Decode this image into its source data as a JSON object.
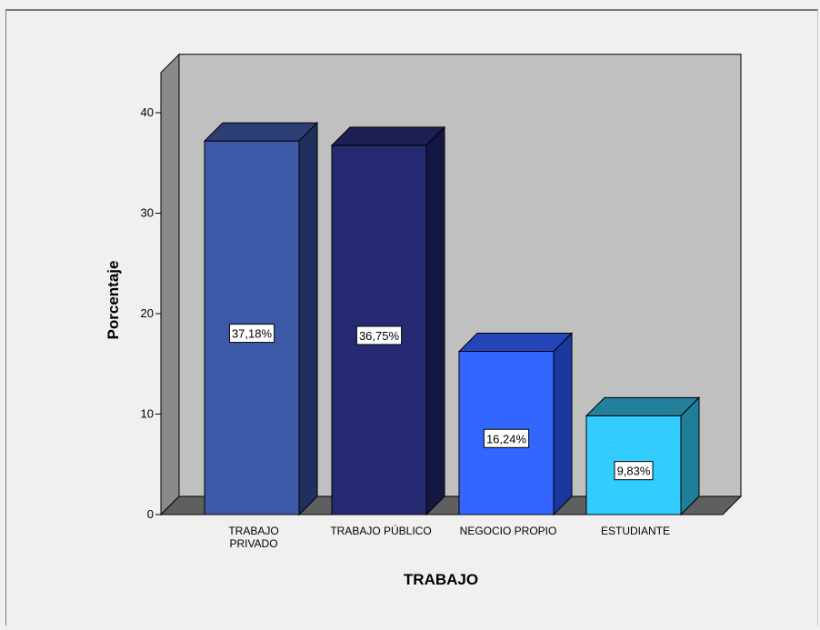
{
  "chart_data": {
    "type": "bar",
    "style": "3d",
    "xlabel": "TRABAJO",
    "ylabel": "Porcentaje",
    "ylim": [
      0,
      40
    ],
    "yticks": [
      "0",
      "10",
      "20",
      "30",
      "40"
    ],
    "grid": false,
    "legend": "none",
    "categories": [
      [
        "TRABAJO",
        "PRIVADO"
      ],
      [
        "TRABAJO PÚBLICO"
      ],
      [
        "NEGOCIO PROPIO"
      ],
      [
        "ESTUDIANTE"
      ]
    ],
    "values": [
      37.18,
      36.75,
      16.24,
      9.83
    ],
    "data_labels": [
      "37,18%",
      "36,75%",
      "16,24%",
      "9,83%"
    ],
    "colors": {
      "bars": [
        "#3d5aa8",
        "#252a72",
        "#3366ff",
        "#33ccff"
      ],
      "bar_tops": [
        "#2d3e74",
        "#1d1f55",
        "#2345b8",
        "#23809a"
      ],
      "bar_sides": [
        "#20305e",
        "#151743",
        "#1a38a0",
        "#1f7f99"
      ],
      "plot_back": "#c0c0c0",
      "floor": "#5f5f5f",
      "wall": "#8a8a8a"
    }
  }
}
